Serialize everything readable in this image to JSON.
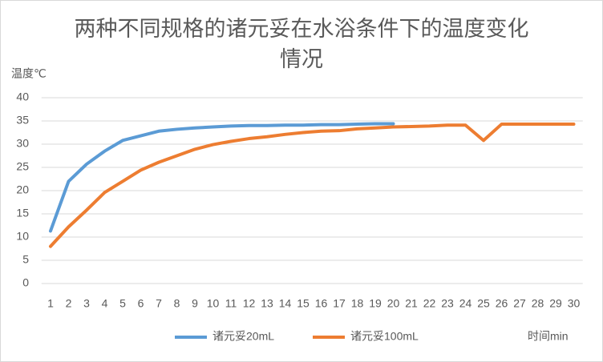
{
  "chart_data": {
    "type": "line",
    "title": "两种不同规格的诸元妥在水浴条件下的温度变化情况",
    "y_label": "温度℃",
    "x_label": "时间min",
    "categories": [
      "1",
      "2",
      "3",
      "4",
      "5",
      "6",
      "7",
      "8",
      "9",
      "10",
      "11",
      "12",
      "13",
      "14",
      "15",
      "16",
      "17",
      "18",
      "19",
      "20",
      "21",
      "22",
      "23",
      "24",
      "25",
      "26",
      "27",
      "28",
      "29",
      "30"
    ],
    "series": [
      {
        "name": "诸元妥20mL",
        "color": "#5b9bd5",
        "values": [
          11.3,
          22,
          25.7,
          28.5,
          30.8,
          31.8,
          32.8,
          33.2,
          33.5,
          33.7,
          33.9,
          34,
          34,
          34.1,
          34.1,
          34.2,
          34.2,
          34.3,
          34.4,
          34.4,
          null,
          null,
          null,
          null,
          null,
          null,
          null,
          null,
          null,
          null
        ]
      },
      {
        "name": "诸元妥100mL",
        "color": "#ed7d31",
        "values": [
          8,
          12.2,
          15.8,
          19.6,
          22,
          24.4,
          26.1,
          27.5,
          28.9,
          29.9,
          30.6,
          31.2,
          31.6,
          32.1,
          32.5,
          32.8,
          32.9,
          33.3,
          33.5,
          33.7,
          33.8,
          33.9,
          34.1,
          34.1,
          30.8,
          34.3,
          34.3,
          34.3,
          34.3,
          34.3
        ]
      }
    ],
    "ylim": [
      0,
      40
    ],
    "yticks": [
      0,
      5,
      10,
      15,
      20,
      25,
      30,
      35,
      40
    ],
    "grid": true,
    "legend": "bottom"
  }
}
